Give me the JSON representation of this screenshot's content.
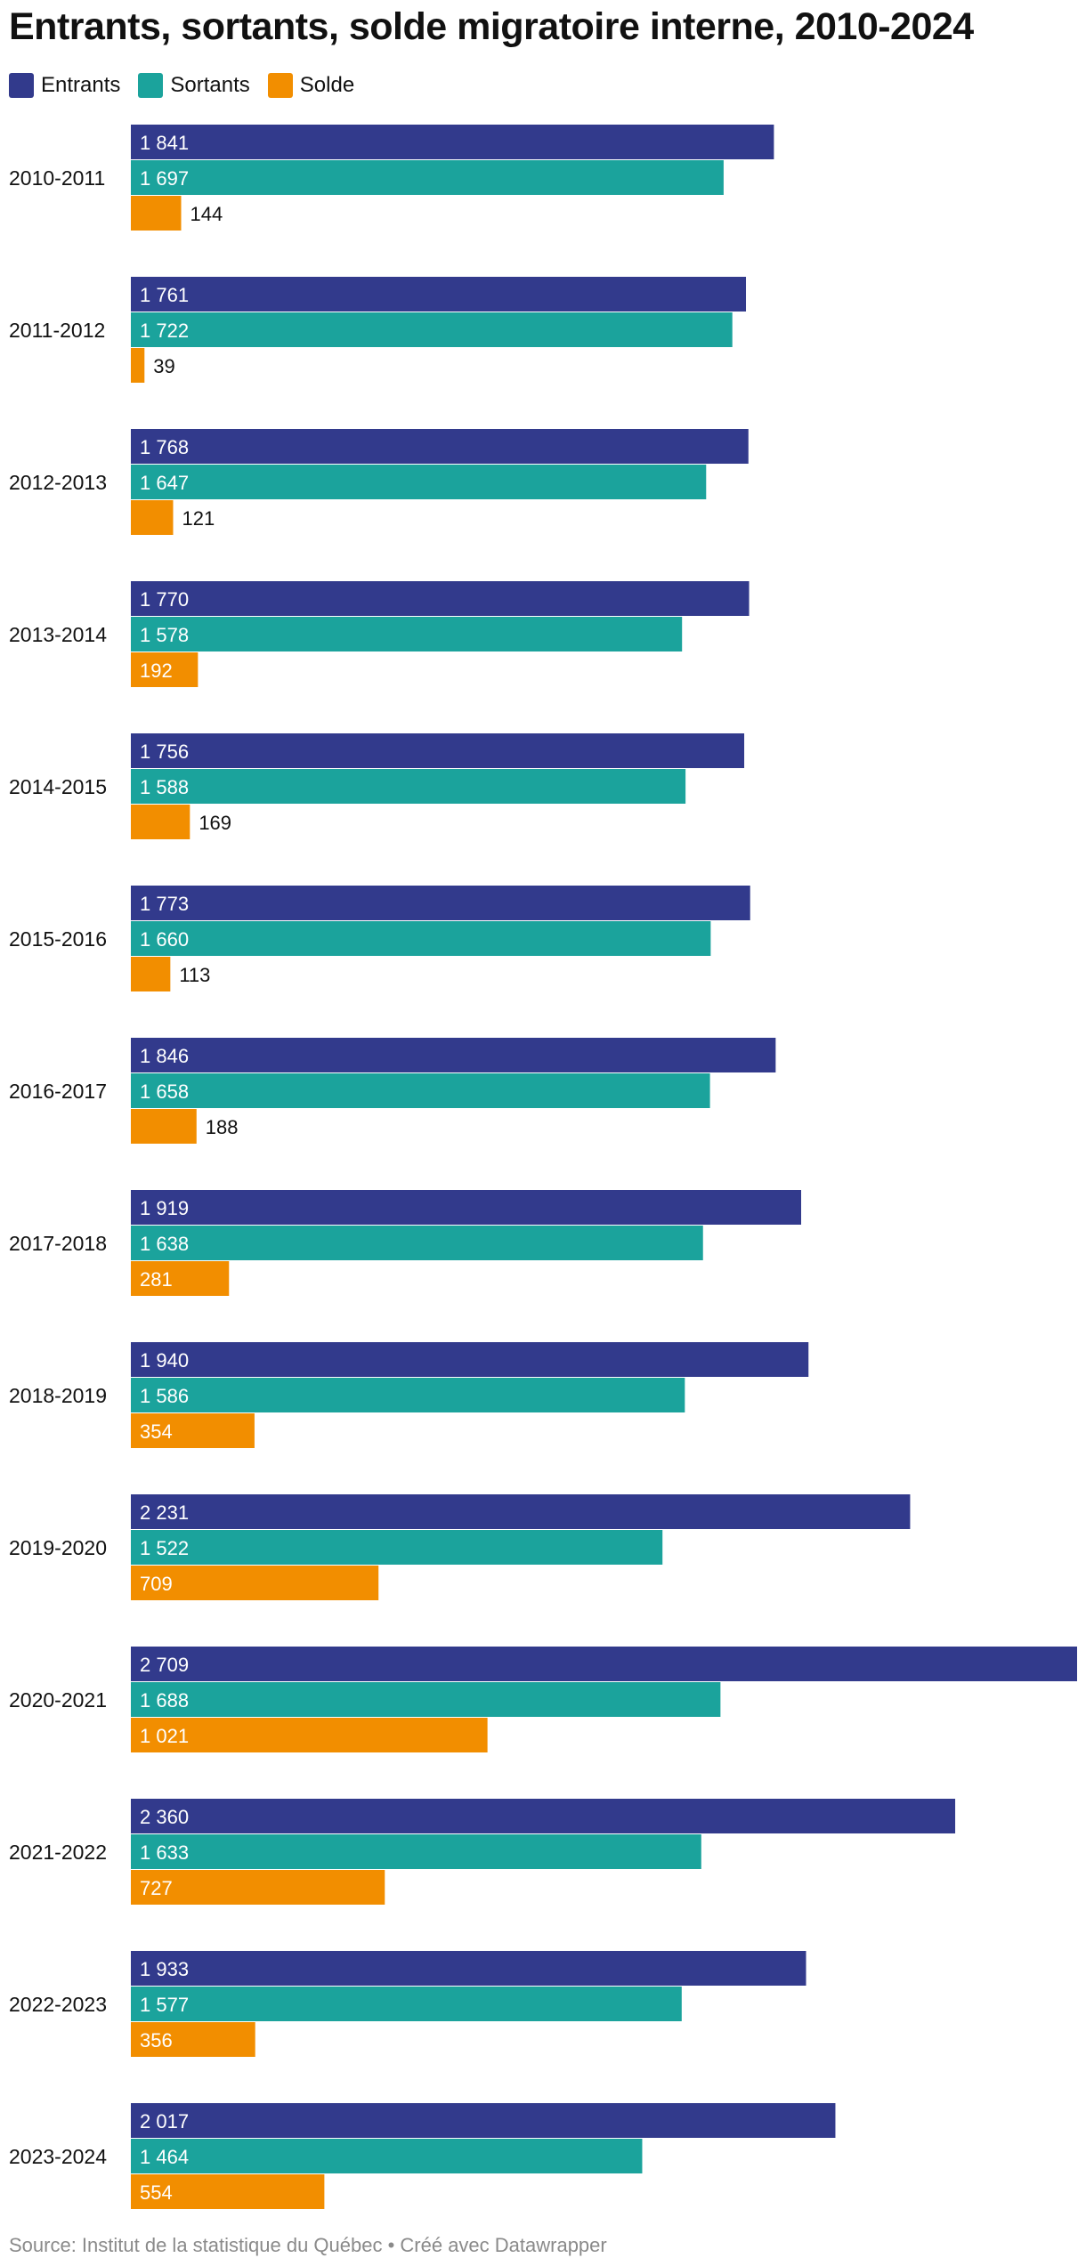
{
  "chart_data": {
    "type": "bar",
    "orientation": "horizontal",
    "title": "Entrants, sortants, solde migratoire interne, 2010-2024",
    "categories": [
      "2010-2011",
      "2011-2012",
      "2012-2013",
      "2013-2014",
      "2014-2015",
      "2015-2016",
      "2016-2017",
      "2017-2018",
      "2018-2019",
      "2019-2020",
      "2020-2021",
      "2021-2022",
      "2022-2023",
      "2023-2024"
    ],
    "series": [
      {
        "name": "Entrants",
        "color": "#323a8c",
        "values": [
          1841,
          1761,
          1768,
          1770,
          1756,
          1773,
          1846,
          1919,
          1940,
          2231,
          2709,
          2360,
          1933,
          2017
        ],
        "labels": [
          "1 841",
          "1 761",
          "1 768",
          "1 770",
          "1 756",
          "1 773",
          "1 846",
          "1 919",
          "1 940",
          "2 231",
          "2 709",
          "2 360",
          "1 933",
          "2 017"
        ]
      },
      {
        "name": "Sortants",
        "color": "#1ba39c",
        "values": [
          1697,
          1722,
          1647,
          1578,
          1588,
          1660,
          1658,
          1638,
          1586,
          1522,
          1688,
          1633,
          1577,
          1464
        ],
        "labels": [
          "1 697",
          "1 722",
          "1 647",
          "1 578",
          "1 588",
          "1 660",
          "1 658",
          "1 638",
          "1 586",
          "1 522",
          "1 688",
          "1 633",
          "1 577",
          "1 464"
        ]
      },
      {
        "name": "Solde",
        "color": "#f28e00",
        "values": [
          144,
          39,
          121,
          192,
          169,
          113,
          188,
          281,
          354,
          709,
          1021,
          727,
          356,
          554
        ],
        "labels": [
          "144",
          "39",
          "121",
          "192",
          "169",
          "113",
          "188",
          "281",
          "354",
          "709",
          "1 021",
          "727",
          "356",
          "554"
        ]
      }
    ],
    "xlim": [
      0,
      2709
    ],
    "legend": "top-left",
    "grid": false
  },
  "source": "Source: Institut de la statistique du Québec • Créé avec Datawrapper"
}
